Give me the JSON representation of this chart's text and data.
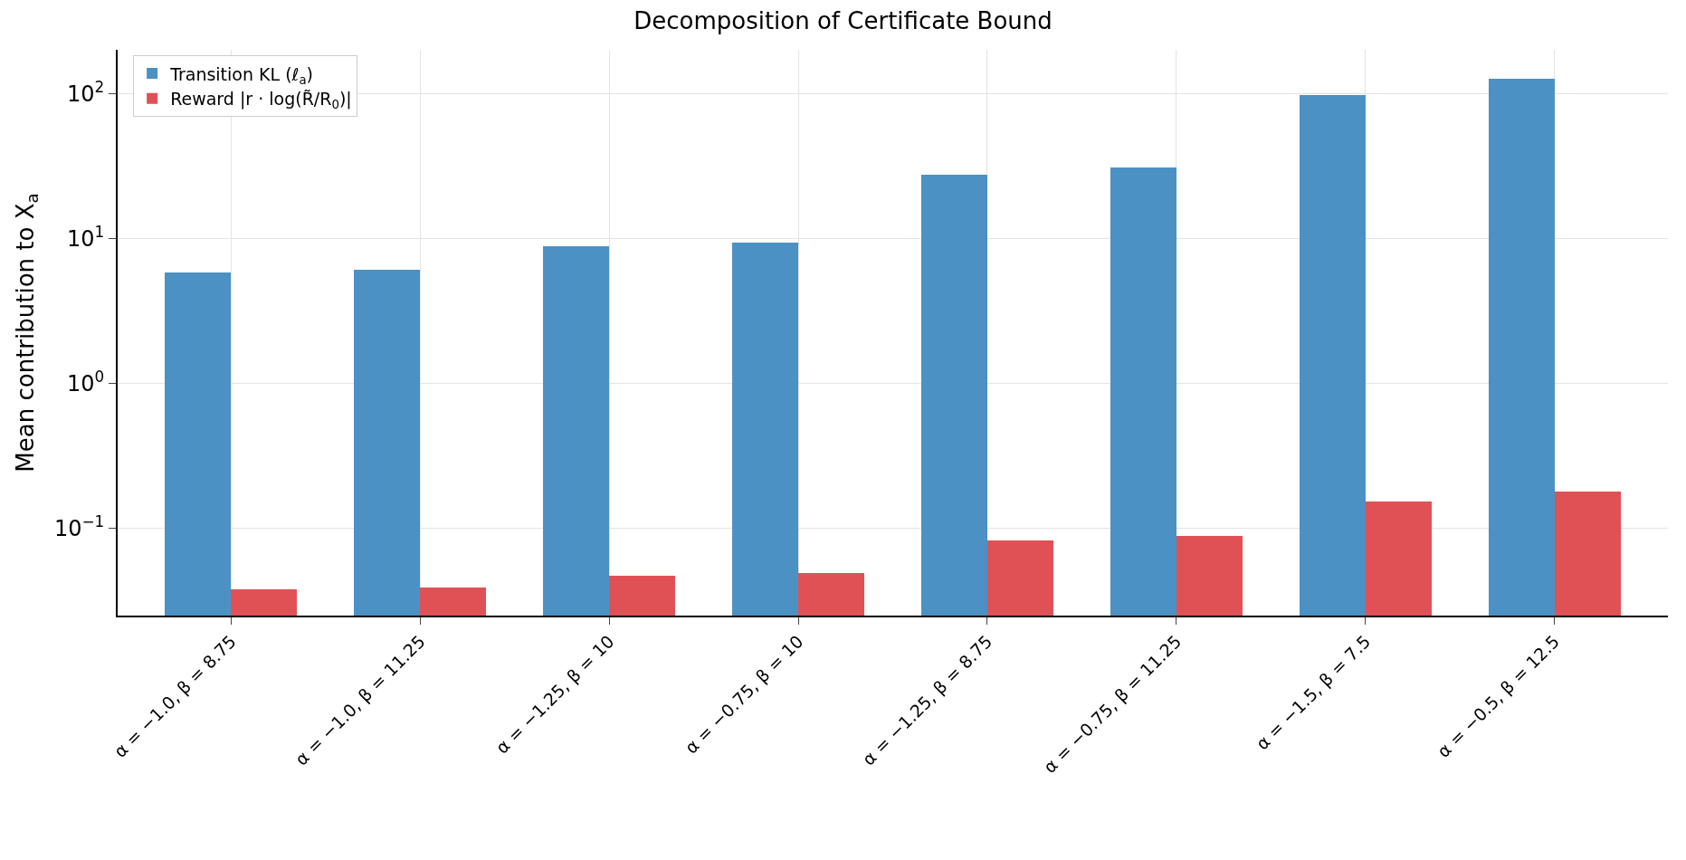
{
  "chart_data": {
    "type": "bar",
    "title": "Decomposition of Certificate Bound",
    "ylabel": "Mean contribution to X$_{a}$",
    "categories": [
      "α = −1.0, β = 8.75",
      "α = −1.0, β = 11.25",
      "α = −1.25, β = 10",
      "α = −0.75, β = 10",
      "α = −1.25, β = 8.75",
      "α = −0.75, β = 11.25",
      "α = −1.5, β = 7.5",
      "α = −0.5, β = 12.5"
    ],
    "series": [
      {
        "name": "Transition KL (ℓ$_{a}$)",
        "color": "#4c91c4",
        "values": [
          5.8,
          6.1,
          8.8,
          9.4,
          27.5,
          31,
          98,
          126
        ]
      },
      {
        "name": "Reward |r · log(R̃/R$_{0}$)|",
        "color": "#e05155",
        "values": [
          0.038,
          0.039,
          0.047,
          0.049,
          0.083,
          0.089,
          0.154,
          0.179
        ]
      }
    ],
    "log": "y",
    "ylim": [
      0.025,
      200
    ],
    "yticks": [
      {
        "value": 0.1,
        "label": "10$^{−1}$"
      },
      {
        "value": 1,
        "label": "10$^{0}$"
      },
      {
        "value": 10,
        "label": "10$^{1}$"
      },
      {
        "value": 100,
        "label": "10$^{2}$"
      }
    ],
    "grid": true,
    "legend": "top left"
  }
}
